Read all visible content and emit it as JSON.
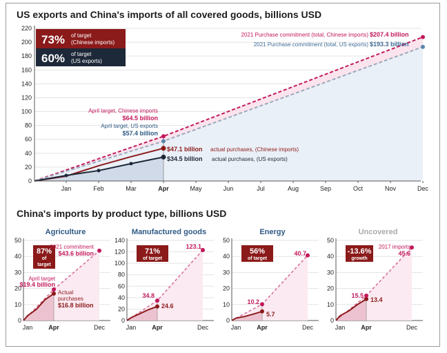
{
  "colors": {
    "chinese": "#c2185b",
    "chinese_dark": "#8b1a1a",
    "us": "#5b85ad",
    "us_dark": "#1d2838",
    "grid": "#e3e3e3",
    "dash_grey": "#9aa9bd"
  },
  "top": {
    "title": "US exports and China's imports of all covered goods, billions USD",
    "badge_cn": {
      "pct": "73%",
      "text1": "of target",
      "text2": "(Chinese imports)"
    },
    "badge_us": {
      "pct": "60%",
      "text1": "of target",
      "text2": "(US exports)"
    },
    "annotations": {
      "commit_cn_text": "2021 Purchase commitment (total, Chinese imports)",
      "commit_cn_value": "$207.4 billion",
      "commit_us_text": "2021 Purchase commitment (total, US exports)",
      "commit_us_value": "$193.3 billion",
      "april_cn_text": "April target, Chinese imports",
      "april_cn_value": "$64.5 billion",
      "april_us_text": "April target, US exports",
      "april_us_value": "$57.4 billion",
      "actual_cn_value": "$47.1 billion",
      "actual_cn_text": "actual purchases, (Chinese imports)",
      "actual_us_value": "$34.5 billion",
      "actual_us_text": "actual purchases, (US exports)"
    }
  },
  "bottom": {
    "title": "China's imports by product type, billions USD",
    "panels": [
      {
        "title": "Agriculture",
        "badge_pct": "87%",
        "badge_text1": "of",
        "badge_text2": "target",
        "ymax": 50,
        "yticks": [
          0,
          10,
          20,
          30,
          40,
          50
        ],
        "commit_text": "2021 commitment",
        "commit_value": "$43.6 billion",
        "target_text": "April target",
        "target_value": "$19.4 billion",
        "actual_text1": "Actual",
        "actual_text2": "purchases",
        "actual_value": "$16.8 billion"
      },
      {
        "title": "Manufactured goods",
        "badge_pct": "71%",
        "badge_text1": "of target",
        "badge_text2": "",
        "ymax": 140,
        "yticks": [
          0,
          20,
          40,
          60,
          80,
          100,
          120,
          140
        ],
        "commit_value": "123.1",
        "target_value": "34.8",
        "actual_value": "24.6"
      },
      {
        "title": "Energy",
        "badge_pct": "56%",
        "badge_text1": "of target",
        "badge_text2": "",
        "ymax": 50,
        "yticks": [
          0,
          10,
          20,
          30,
          40,
          50
        ],
        "commit_value": "40.7",
        "target_value": "10.2",
        "actual_value": "5.7"
      },
      {
        "title": "Uncovered",
        "badge_pct": "-13.6%",
        "badge_text1": "growth",
        "badge_text2": "",
        "ymax": 50,
        "yticks": [
          0,
          10,
          20,
          30,
          40,
          50
        ],
        "commit_text": "2017 imports",
        "commit_value": "45.6",
        "target_value": "15.5",
        "actual_value": "13.4"
      }
    ]
  },
  "chart_data": [
    {
      "type": "line",
      "title": "US exports and China's imports of all covered goods, billions USD",
      "x": [
        "Jan",
        "Feb",
        "Mar",
        "Apr",
        "May",
        "Jun",
        "Jul",
        "Aug",
        "Sep",
        "Oct",
        "Nov",
        "Dec"
      ],
      "ylim": [
        0,
        220
      ],
      "yticks": [
        0,
        20,
        40,
        60,
        80,
        100,
        120,
        140,
        160,
        180,
        200,
        220
      ],
      "grid": true,
      "series": [
        {
          "name": "Chinese imports",
          "kind": "actual",
          "x": [
            "Jan",
            "Feb",
            "Mar",
            "Apr"
          ],
          "values": [
            7,
            22,
            35,
            47.1
          ]
        },
        {
          "name": "US exports",
          "kind": "actual",
          "x": [
            "Jan",
            "Feb",
            "Mar",
            "Apr"
          ],
          "values": [
            8,
            15,
            25,
            34.5
          ]
        },
        {
          "name": "Chinese imports",
          "kind": "target",
          "x": [
            "Dec-start",
            "Apr",
            "Dec"
          ],
          "values": [
            0,
            64.5,
            207.4
          ]
        },
        {
          "name": "US exports",
          "kind": "target",
          "x": [
            "Dec-start",
            "Apr",
            "Dec"
          ],
          "values": [
            0,
            57.4,
            193.3
          ]
        }
      ]
    },
    {
      "type": "line",
      "title": "Agriculture",
      "x": [
        "Jan",
        "Apr",
        "Dec"
      ],
      "ylim": [
        0,
        50
      ],
      "series": [
        {
          "kind": "actual",
          "x": [
            "Jan",
            "Feb",
            "Mar",
            "Apr"
          ],
          "values": [
            3,
            7,
            13,
            16.8
          ]
        },
        {
          "kind": "target",
          "x": [
            "start",
            "Apr",
            "Dec"
          ],
          "values": [
            0,
            19.4,
            43.6
          ]
        }
      ]
    },
    {
      "type": "line",
      "title": "Manufactured goods",
      "x": [
        "Jan",
        "Apr",
        "Dec"
      ],
      "ylim": [
        0,
        140
      ],
      "series": [
        {
          "kind": "actual",
          "x": [
            "Jan",
            "Feb",
            "Mar",
            "Apr"
          ],
          "values": [
            5,
            12,
            19,
            24.6
          ]
        },
        {
          "kind": "target",
          "x": [
            "start",
            "Apr",
            "Dec"
          ],
          "values": [
            0,
            34.8,
            123.1
          ]
        }
      ]
    },
    {
      "type": "line",
      "title": "Energy",
      "x": [
        "Jan",
        "Apr",
        "Dec"
      ],
      "ylim": [
        0,
        50
      ],
      "series": [
        {
          "kind": "actual",
          "x": [
            "Jan",
            "Feb",
            "Mar",
            "Apr"
          ],
          "values": [
            1.5,
            2.5,
            4,
            5.7
          ]
        },
        {
          "kind": "target",
          "x": [
            "start",
            "Apr",
            "Dec"
          ],
          "values": [
            0,
            10.2,
            40.7
          ]
        }
      ]
    },
    {
      "type": "line",
      "title": "Uncovered",
      "x": [
        "Jan",
        "Apr",
        "Dec"
      ],
      "ylim": [
        0,
        50
      ],
      "series": [
        {
          "kind": "actual",
          "x": [
            "Jan",
            "Feb",
            "Mar",
            "Apr"
          ],
          "values": [
            3,
            6,
            10,
            13.4
          ]
        },
        {
          "kind": "target",
          "x": [
            "start",
            "Apr",
            "Dec"
          ],
          "values": [
            0,
            15.5,
            45.6
          ]
        }
      ]
    }
  ]
}
